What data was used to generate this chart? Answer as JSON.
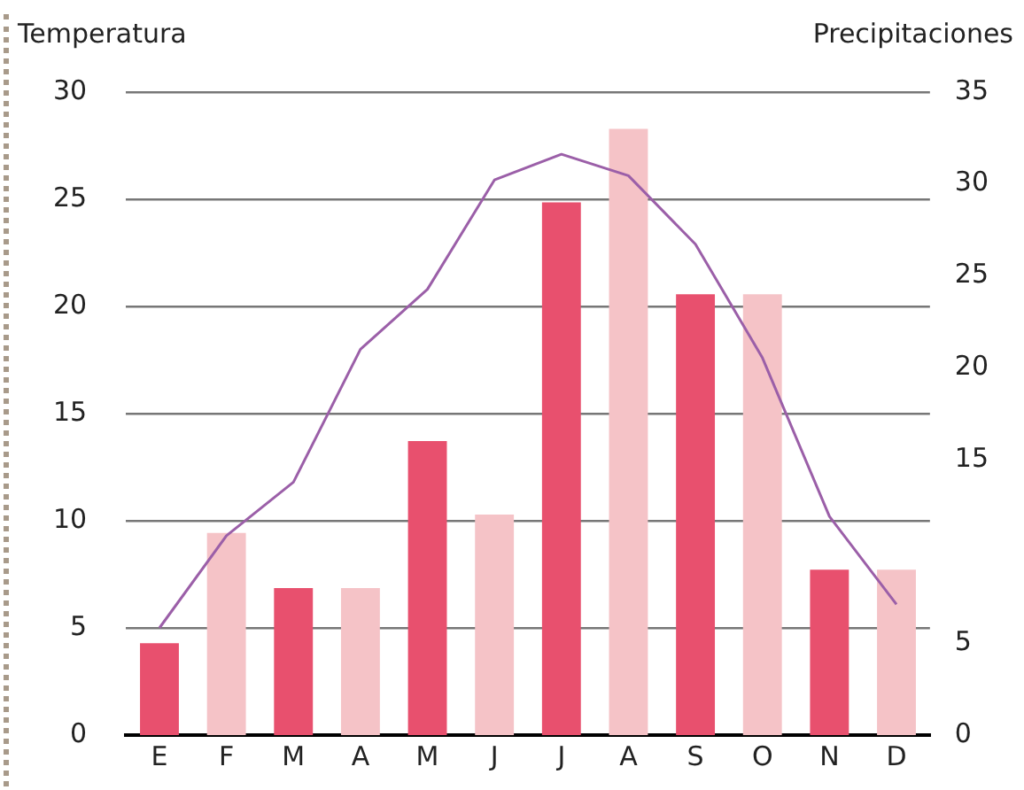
{
  "chart_data": {
    "type": "bar",
    "ylabel": "Temperatura",
    "y2label": "Precipitaciones",
    "categories": [
      "E",
      "F",
      "M",
      "A",
      "M",
      "J",
      "J",
      "A",
      "S",
      "O",
      "N",
      "D"
    ],
    "series": [
      {
        "axis": "y2",
        "colors": [
          "#e8506e",
          "#f5c3c7",
          "#e8506e",
          "#f5c3c7",
          "#e8506e",
          "#f5c3c7",
          "#e8506e",
          "#f5c3c7",
          "#e8506e",
          "#f5c3c7",
          "#e8506e",
          "#f5c3c7"
        ],
        "values": [
          5,
          11,
          8,
          8,
          16,
          12,
          29,
          33,
          24,
          24,
          9,
          9
        ]
      },
      {
        "type": "line",
        "axis": "y",
        "color": "#9b5fa8",
        "values": [
          5,
          9.3,
          11.8,
          18,
          20.8,
          25.9,
          27.1,
          26.1,
          22.9,
          17.6,
          10.2,
          6.1
        ]
      }
    ],
    "ylim": [
      0,
      30
    ],
    "yticks": [
      0,
      5,
      10,
      15,
      20,
      25,
      30
    ],
    "y2lim": [
      0,
      35
    ],
    "y2ticks": [
      0,
      5,
      15,
      20,
      25,
      30,
      35
    ],
    "grid": "y",
    "legend": false,
    "marker": "none",
    "line_style": "solid"
  }
}
